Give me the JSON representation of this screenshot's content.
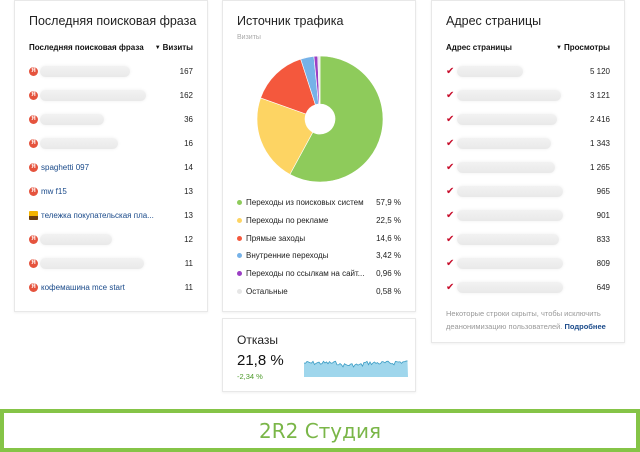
{
  "search_phrases": {
    "title": "Последняя поисковая фраза",
    "col_label": "Последняя поисковая фраза",
    "col_value": "Визиты",
    "sort_icon": "sort-desc-icon",
    "rows": [
      {
        "icon": "yandex",
        "text": "",
        "hidden": true,
        "blur_width": 90,
        "value": "167"
      },
      {
        "icon": "yandex",
        "text": "",
        "hidden": true,
        "blur_width": 106,
        "value": "162"
      },
      {
        "icon": "yandex",
        "text": "",
        "hidden": true,
        "blur_width": 64,
        "value": "36"
      },
      {
        "icon": "yandex",
        "text": "",
        "hidden": true,
        "blur_width": 78,
        "value": "16"
      },
      {
        "icon": "yandex",
        "text": "spaghetti 097",
        "hidden": false,
        "value": "14"
      },
      {
        "icon": "yandex",
        "text": "mw f15",
        "hidden": false,
        "value": "13"
      },
      {
        "icon": "image",
        "text": "тележка покупательская пла...",
        "hidden": false,
        "value": "13"
      },
      {
        "icon": "yandex",
        "text": "",
        "hidden": true,
        "blur_width": 72,
        "value": "12"
      },
      {
        "icon": "yandex",
        "text": "",
        "hidden": true,
        "blur_width": 104,
        "value": "11"
      },
      {
        "icon": "yandex",
        "text": "кофемашина mce start",
        "hidden": false,
        "value": "11"
      }
    ]
  },
  "traffic": {
    "title": "Источник трафика",
    "subtitle": "Визиты",
    "legend": [
      {
        "label": "Переходы из поисковых систем",
        "value": "57,9 %",
        "color": "#8ecb5b"
      },
      {
        "label": "Переходы по рекламе",
        "value": "22,5 %",
        "color": "#fdd463"
      },
      {
        "label": "Прямые заходы",
        "value": "14,6 %",
        "color": "#f4583d"
      },
      {
        "label": "Внутренние переходы",
        "value": "3,42 %",
        "color": "#76b2e8"
      },
      {
        "label": "Переходы по ссылкам на сайт...",
        "value": "0,96 %",
        "color": "#9b3fc4"
      },
      {
        "label": "Остальные",
        "value": "0,58 %",
        "color": "#e6e6e6"
      }
    ]
  },
  "chart_data": {
    "type": "pie",
    "title": "Источник трафика",
    "subtitle": "Визиты",
    "categories": [
      "Переходы из поисковых систем",
      "Переходы по рекламе",
      "Прямые заходы",
      "Внутренние переходы",
      "Переходы по ссылкам на сайт...",
      "Остальные"
    ],
    "values": [
      57.9,
      22.5,
      14.6,
      3.42,
      0.96,
      0.58
    ],
    "colors": [
      "#8ecb5b",
      "#fdd463",
      "#f4583d",
      "#76b2e8",
      "#9b3fc4",
      "#e6e6e6"
    ],
    "legend_position": "bottom",
    "donut": true
  },
  "bounce": {
    "title": "Отказы",
    "value": "21,8 %",
    "delta": "-2,34 %"
  },
  "pages": {
    "title": "Адрес страницы",
    "col_label": "Адрес страницы",
    "col_value": "Просмотры",
    "sort_icon": "sort-desc-icon",
    "rows": [
      {
        "blur_width": 66,
        "value": "5 120"
      },
      {
        "blur_width": 104,
        "value": "3 121"
      },
      {
        "blur_width": 100,
        "value": "2 416"
      },
      {
        "blur_width": 94,
        "value": "1 343"
      },
      {
        "blur_width": 98,
        "value": "1 265"
      },
      {
        "blur_width": 106,
        "value": "965"
      },
      {
        "blur_width": 106,
        "value": "901"
      },
      {
        "blur_width": 102,
        "value": "833"
      },
      {
        "blur_width": 106,
        "value": "809"
      },
      {
        "blur_width": 106,
        "value": "649"
      }
    ],
    "note": "Некоторые строки скрыты, чтобы исключить деанонимизацию пользователей.",
    "note_link": "Подробнее"
  },
  "banner": {
    "text": "2R2 Студия",
    "color": "#85c447"
  }
}
